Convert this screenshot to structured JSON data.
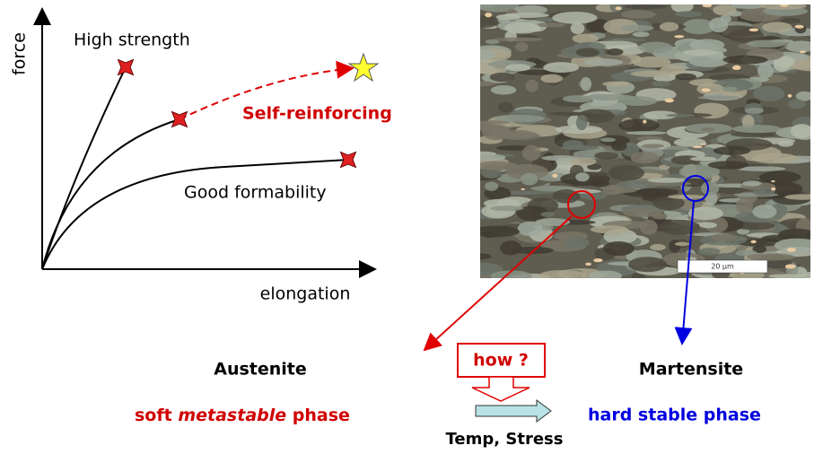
{
  "graph": {
    "y_axis_label": "force",
    "x_axis_label": "elongation",
    "curves": [
      "High strength",
      "Self-reinforcing",
      "Good formability"
    ]
  },
  "micrograph": {
    "scale_label": "20 µm"
  },
  "phases": {
    "left_name": "Austenite",
    "left_desc": [
      "soft",
      "metastable",
      "phase"
    ],
    "right_name": "Martensite",
    "right_desc": "hard stable phase"
  },
  "transition": {
    "question": "how ?",
    "driver": "Temp, Stress"
  }
}
